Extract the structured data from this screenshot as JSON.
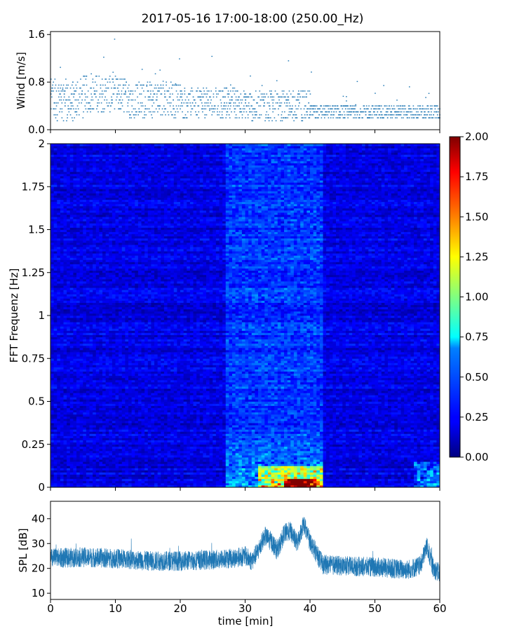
{
  "title": "2017-05-16 17:00-18:00 (250.00_Hz)",
  "chart_data": [
    {
      "type": "scatter",
      "name": "wind",
      "ylabel": "Wind [m/s]",
      "ylim": [
        0.0,
        1.65
      ],
      "yticks": [
        "0.0",
        "0.8",
        "1.6"
      ],
      "ytick_values": [
        0.0,
        0.8,
        1.6
      ],
      "xlim": [
        0,
        60
      ],
      "marker_color": "#1f77b4",
      "segments": [
        {
          "x": [
            0,
            5
          ],
          "base": 0.5,
          "amp": 0.35
        },
        {
          "x": [
            5,
            12
          ],
          "base": 0.6,
          "amp": 0.3
        },
        {
          "x": [
            12,
            20
          ],
          "base": 0.5,
          "amp": 0.3
        },
        {
          "x": [
            20,
            30
          ],
          "base": 0.45,
          "amp": 0.25
        },
        {
          "x": [
            30,
            40
          ],
          "base": 0.4,
          "amp": 0.25
        },
        {
          "x": [
            40,
            60
          ],
          "base": 0.3,
          "amp": 0.12
        }
      ]
    },
    {
      "type": "heatmap",
      "name": "spectrogram",
      "ylabel": "FFT Frequenz [Hz]",
      "ylim": [
        0,
        2
      ],
      "yticks": [
        "0",
        "0.25",
        "0.5",
        "0.75",
        "1",
        "1.25",
        "1.5",
        "1.75",
        "2"
      ],
      "ytick_values": [
        0,
        0.25,
        0.5,
        0.75,
        1,
        1.25,
        1.5,
        1.75,
        2
      ],
      "xlim": [
        0,
        60
      ],
      "colorbar": {
        "range": [
          0.0,
          2.0
        ],
        "ticks": [
          "0.00",
          "0.25",
          "0.50",
          "0.75",
          "1.00",
          "1.25",
          "1.50",
          "1.75",
          "2.00"
        ],
        "tick_values": [
          0,
          0.25,
          0.5,
          0.75,
          1,
          1.25,
          1.5,
          1.75,
          2
        ],
        "colormap": "jet"
      },
      "hot_region": {
        "x": [
          27,
          42
        ],
        "peak_x": [
          36,
          41
        ],
        "peak_freq": [
          0,
          0.05
        ]
      }
    },
    {
      "type": "line",
      "name": "spl",
      "ylabel": "SPL [dB]",
      "xlabel": "time [min]",
      "ylim": [
        7.5,
        47
      ],
      "yticks": [
        "10",
        "20",
        "30",
        "40"
      ],
      "ytick_values": [
        10,
        20,
        30,
        40
      ],
      "xlim": [
        0,
        60
      ],
      "xticks": [
        "0",
        "10",
        "20",
        "30",
        "40",
        "50",
        "60"
      ],
      "xtick_values": [
        0,
        10,
        20,
        30,
        40,
        50,
        60
      ],
      "line_color": "#1f77b4",
      "profile": [
        [
          0,
          24
        ],
        [
          5,
          24.5
        ],
        [
          10,
          24
        ],
        [
          15,
          23
        ],
        [
          20,
          23
        ],
        [
          25,
          23.5
        ],
        [
          28,
          24
        ],
        [
          30,
          25
        ],
        [
          31,
          23
        ],
        [
          32,
          27
        ],
        [
          33,
          33
        ],
        [
          34,
          31
        ],
        [
          35,
          27
        ],
        [
          36,
          34
        ],
        [
          37,
          35
        ],
        [
          38,
          30
        ],
        [
          39,
          38
        ],
        [
          40,
          31
        ],
        [
          41,
          26
        ],
        [
          42,
          21.5
        ],
        [
          45,
          21
        ],
        [
          50,
          20.5
        ],
        [
          55,
          19.5
        ],
        [
          57,
          21
        ],
        [
          58,
          29
        ],
        [
          59,
          20
        ],
        [
          60,
          18
        ]
      ],
      "band": 4
    }
  ]
}
